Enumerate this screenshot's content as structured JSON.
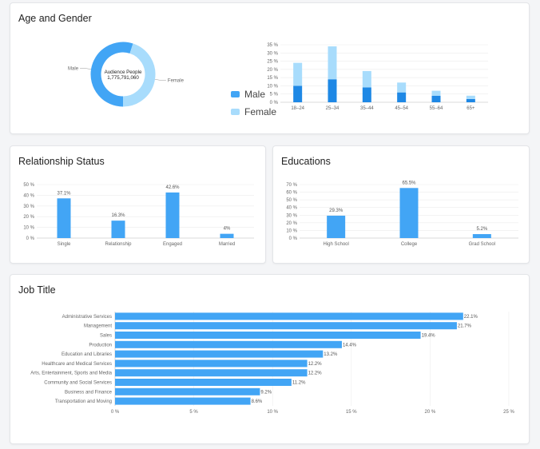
{
  "colors": {
    "primary": "#42a5f5",
    "dark": "#1e88e5",
    "light": "#a8dcfc"
  },
  "age_gender_title": "Age and Gender",
  "relationship_title": "Relationship Status",
  "educations_title": "Educations",
  "job_title": "Job Title",
  "chart_data": [
    {
      "type": "pie",
      "donut": true,
      "center_title": "Audience People",
      "center_value": "1,775,791,060",
      "slices": [
        {
          "label": "Male",
          "value": 55
        },
        {
          "label": "Female",
          "value": 45
        }
      ]
    },
    {
      "type": "bar",
      "stacked": true,
      "categories": [
        "18–24",
        "25–34",
        "35–44",
        "45–54",
        "55–64",
        "65+"
      ],
      "series": [
        {
          "name": "Male",
          "values": [
            10,
            14,
            9,
            6,
            4,
            2
          ]
        },
        {
          "name": "Female",
          "values": [
            14,
            20,
            10,
            6,
            3,
            2
          ]
        }
      ],
      "ylim": [
        0,
        35
      ],
      "yticks": [
        "0 %",
        "5 %",
        "10 %",
        "15 %",
        "20 %",
        "25 %",
        "30 %",
        "35 %"
      ],
      "legend": "left"
    },
    {
      "type": "bar",
      "categories": [
        "Single",
        "Relationship",
        "Engaged",
        "Married"
      ],
      "values": [
        37.1,
        16.3,
        42.6,
        4
      ],
      "labels": [
        "37.1%",
        "16.3%",
        "42.6%",
        "4%"
      ],
      "ylim": [
        0,
        50
      ],
      "yticks": [
        "0 %",
        "10 %",
        "20 %",
        "30 %",
        "40 %",
        "50 %"
      ]
    },
    {
      "type": "bar",
      "categories": [
        "High School",
        "College",
        "Grad School"
      ],
      "values": [
        29.3,
        65.5,
        5.2
      ],
      "labels": [
        "29.3%",
        "65.5%",
        "5.2%"
      ],
      "ylim": [
        0,
        70
      ],
      "yticks": [
        "0 %",
        "10 %",
        "20 %",
        "30 %",
        "40 %",
        "50 %",
        "60 %",
        "70 %"
      ]
    },
    {
      "type": "bar",
      "orientation": "horizontal",
      "categories": [
        "Administrative Services",
        "Management",
        "Sales",
        "Production",
        "Education and Libraries",
        "Healthcare and Medical Services",
        "Arts, Entertainment, Sports and Media",
        "Community and Social Services",
        "Business and Finance",
        "Transportation and Moving"
      ],
      "values": [
        22.1,
        21.7,
        19.4,
        14.4,
        13.2,
        12.2,
        12.2,
        11.2,
        9.2,
        8.6
      ],
      "labels": [
        "22.1%",
        "21.7%",
        "19.4%",
        "14.4%",
        "13.2%",
        "12.2%",
        "12.2%",
        "11.2%",
        "9.2%",
        "8.6%"
      ],
      "xlim": [
        0,
        25
      ],
      "xticks": [
        "0 %",
        "5 %",
        "10 %",
        "15 %",
        "20 %",
        "25 %"
      ]
    }
  ]
}
